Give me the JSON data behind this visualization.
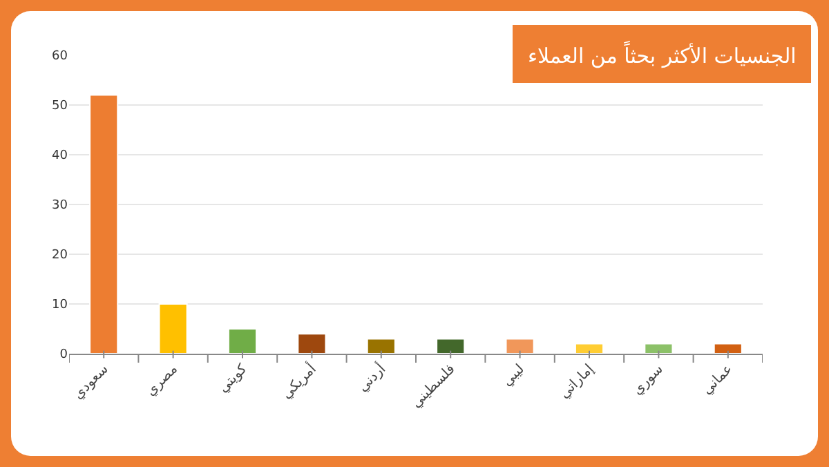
{
  "chart_data": {
    "type": "bar",
    "title": "الجنسيات الأكثر بحثاً من العملاء",
    "categories": [
      "سعودي",
      "مصري",
      "كويتي",
      "أمريكي",
      "أردني",
      "فلسطيني",
      "ليبي",
      "إماراتي",
      "سوري",
      "عماني"
    ],
    "values": [
      52,
      10,
      5,
      4,
      3,
      3,
      3,
      2,
      2,
      2
    ],
    "colors": [
      "#ed7d31",
      "#ffc000",
      "#70ad47",
      "#9e480e",
      "#997300",
      "#43682b",
      "#f1975a",
      "#ffcd33",
      "#8cc168",
      "#d26012"
    ],
    "ylim": [
      0,
      60
    ],
    "yticks": [
      0,
      10,
      20,
      30,
      40,
      50,
      60
    ],
    "grid": "y",
    "legend": false
  }
}
